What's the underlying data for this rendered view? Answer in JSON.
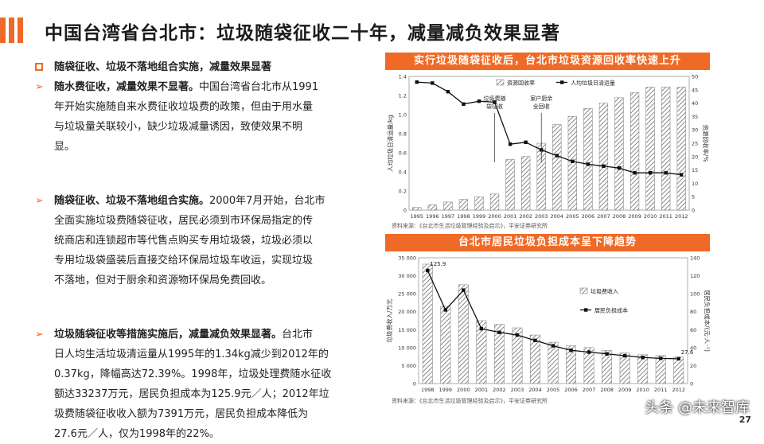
{
  "title": "中国台湾省台北市：垃圾随袋征收二十年，减量减负效果显著",
  "left": {
    "heading": "随袋征收、垃圾不落地组合实施，减量效果显著",
    "p1_bold": "随水费征收，减量效果不显著。",
    "p1_lines": [
      "中国台湾省台北市从1991",
      "年开始实施随自来水费征收垃圾费的政策，但由于用水量",
      "与垃圾量关联较小，缺少垃圾减量诱因，致使效果不明",
      "显。"
    ],
    "p2_bold": "随袋征收、垃圾不落地组合实施。",
    "p2_lines": [
      "2000年7月开始，台北市",
      "全面实施垃圾费随袋征收，居民必须到市环保局指定的传",
      "统商店和连锁超市等代售点购买专用垃圾袋，垃圾必须以",
      "专用垃圾袋盛装后直接交给环保局垃圾车收运，实现垃圾",
      "不落地，但对于厨余和资源物环保局免费回收。"
    ],
    "p3_bold": "垃圾随袋征收等措施实施后，减量减负效果显著。",
    "p3_lines": [
      "台北市",
      "日人均生活垃圾清运量从1995年的1.34kg减少到2012年的",
      "0.37kg，降幅高达72.39%。1998年，垃圾处理费随水征收",
      "额达33237万元，居民负担成本为125.9元／人；2012年垃",
      "圾费随袋征收收入额为7391万元，居民负担成本降低为",
      "27.6元／人，仅为1998年的22%。"
    ]
  },
  "panel1": {
    "heading": "实行垃圾随袋征收后，台北市垃圾资源回收率快速上升",
    "source": "资料来源：《台北市生活垃圾管理经验及启示》，平安证券研究所"
  },
  "panel2": {
    "heading": "台北市居民垃圾负担成本呈下降趋势",
    "source": "资料来源：《台北市生活垃圾管理经验及启示》，平安证券研究所"
  },
  "chart_data": [
    {
      "type": "bar",
      "categories": [
        "1995",
        "1996",
        "1997",
        "1998",
        "1999",
        "2000",
        "2001",
        "2002",
        "2003",
        "2004",
        "2005",
        "2006",
        "2007",
        "2008",
        "2009",
        "2010",
        "2011",
        "2012"
      ],
      "series": [
        {
          "name": "资源回收率",
          "type": "bar",
          "axis": "right",
          "values": [
            1,
            2,
            3,
            4,
            5,
            6,
            19,
            20,
            25,
            32,
            35,
            38,
            40,
            42,
            44,
            46,
            46,
            46
          ]
        },
        {
          "name": "人均垃圾日清运量",
          "type": "line",
          "axis": "left",
          "values": [
            1.34,
            1.33,
            1.24,
            1.11,
            1.14,
            1.13,
            0.69,
            0.71,
            0.63,
            0.57,
            0.51,
            0.48,
            0.46,
            0.44,
            0.39,
            0.39,
            0.39,
            0.37
          ]
        }
      ],
      "ylabel": "人均垃圾日清运量/kg",
      "y2label": "资源回收率/%",
      "ylim": [
        0,
        1.4
      ],
      "y2lim": [
        0,
        50
      ],
      "yticks": [
        "0",
        "0.2",
        "0.4",
        "0.6",
        "0.8",
        "1.0",
        "1.2",
        "1.4"
      ],
      "y2ticks": [
        "0",
        "5",
        "10",
        "15",
        "20",
        "25",
        "30",
        "35",
        "40",
        "45",
        "50"
      ],
      "annotations": [
        {
          "text": [
            "垃圾费随",
            "袋征收"
          ],
          "x": "2000"
        },
        {
          "text": [
            "家户厨余",
            "全回收"
          ],
          "x": "2003"
        }
      ],
      "legend": "top"
    },
    {
      "type": "bar",
      "categories": [
        "1998",
        "1999",
        "2000",
        "2001",
        "2002",
        "2003",
        "2004",
        "2005",
        "2006",
        "2007",
        "2008",
        "2009",
        "2010",
        "2011",
        "2012"
      ],
      "series": [
        {
          "name": "垃圾费收入",
          "type": "bar",
          "axis": "left",
          "values": [
            33237,
            21500,
            27500,
            17500,
            16500,
            15500,
            13500,
            11500,
            10500,
            10000,
            9200,
            8500,
            8000,
            7800,
            7391
          ]
        },
        {
          "name": "居民负担成本",
          "type": "line",
          "axis": "right",
          "values": [
            125.9,
            82,
            104,
            61,
            57,
            54,
            48,
            42,
            37,
            35,
            33,
            31,
            29,
            28,
            27.6
          ]
        }
      ],
      "ylabel": "垃圾费收入/万元",
      "y2label": "居民负担成本/(元·人⁻¹)",
      "ylim": [
        0,
        35000
      ],
      "y2lim": [
        0,
        140
      ],
      "yticks": [
        "0",
        "5 000",
        "10 000",
        "15 000",
        "20 000",
        "25 000",
        "30 000",
        "35 000"
      ],
      "y2ticks": [
        "0",
        "20",
        "40",
        "60",
        "80",
        "100",
        "120",
        "140"
      ],
      "data_labels": [
        {
          "x": "1998",
          "text": "125.9"
        },
        {
          "x": "2012",
          "text": "27.6"
        }
      ],
      "legend": "right"
    }
  ],
  "watermark": "头条 @未来智库",
  "page_number": "27"
}
